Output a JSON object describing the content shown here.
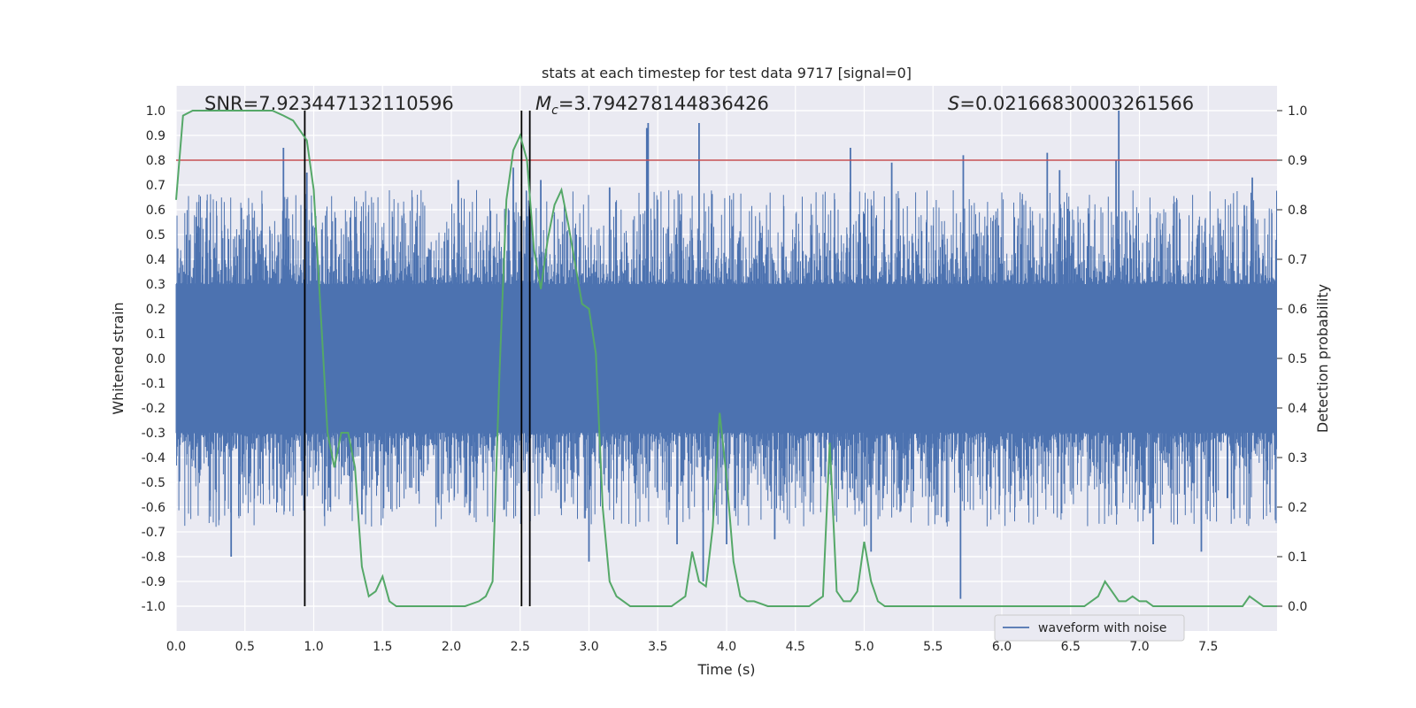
{
  "chart_data": {
    "type": "line",
    "title": "stats at each timestep for test data 9717 [signal=0]",
    "xlabel": "Time (s)",
    "ylabel": "Whitened strain",
    "y2label": "Detection probability",
    "xlim": [
      0.0,
      8.0
    ],
    "ylim": [
      -1.1,
      1.1
    ],
    "y2lim": [
      -0.05,
      1.05
    ],
    "x_ticks": [
      "0.0",
      "0.5",
      "1.0",
      "1.5",
      "2.0",
      "2.5",
      "3.0",
      "3.5",
      "4.0",
      "4.5",
      "5.0",
      "5.5",
      "6.0",
      "6.5",
      "7.0",
      "7.5"
    ],
    "y_ticks": [
      "1.0",
      "0.9",
      "0.8",
      "0.7",
      "0.6",
      "0.5",
      "0.4",
      "0.3",
      "0.2",
      "0.1",
      "0.0",
      "-0.1",
      "-0.2",
      "-0.3",
      "-0.4",
      "-0.5",
      "-0.6",
      "-0.7",
      "-0.8",
      "-0.9",
      "-1.0"
    ],
    "y2_ticks": [
      "1.0",
      "0.9",
      "0.8",
      "0.7",
      "0.6",
      "0.5",
      "0.4",
      "0.3",
      "0.2",
      "0.1",
      "0.0"
    ],
    "annotations": {
      "snr": "SNR=7.923447132110596",
      "mc_symbol": "M",
      "mc_sub": "c",
      "mc_value": "=3.794278144836426",
      "s_symbol": "S",
      "s_value": "=0.02166830003261566"
    },
    "legend": {
      "label": "waveform with noise",
      "position": "lower-right"
    },
    "threshold": {
      "y2": 0.9,
      "color": "#c44e52"
    },
    "vertical_lines_x": [
      0.935,
      2.51,
      2.57
    ],
    "waveform": {
      "name": "waveform with noise",
      "color": "#4c72b0",
      "sample_count": 2400,
      "core_amplitude": 0.3,
      "spikes": [
        {
          "x": 0.4,
          "y": -0.8
        },
        {
          "x": 0.78,
          "y": 0.85
        },
        {
          "x": 0.95,
          "y": 0.75
        },
        {
          "x": 1.12,
          "y": -0.6
        },
        {
          "x": 1.35,
          "y": -0.63
        },
        {
          "x": 2.05,
          "y": 0.72
        },
        {
          "x": 2.45,
          "y": 0.77
        },
        {
          "x": 2.65,
          "y": 0.72
        },
        {
          "x": 3.0,
          "y": -0.82
        },
        {
          "x": 3.15,
          "y": 0.69
        },
        {
          "x": 3.42,
          "y": 0.93
        },
        {
          "x": 3.43,
          "y": 0.95
        },
        {
          "x": 3.64,
          "y": -0.75
        },
        {
          "x": 3.8,
          "y": 0.95
        },
        {
          "x": 3.83,
          "y": -0.9
        },
        {
          "x": 4.0,
          "y": -0.75
        },
        {
          "x": 4.35,
          "y": -0.73
        },
        {
          "x": 4.9,
          "y": 0.85
        },
        {
          "x": 5.05,
          "y": -0.78
        },
        {
          "x": 5.2,
          "y": 0.79
        },
        {
          "x": 5.7,
          "y": -0.97
        },
        {
          "x": 5.72,
          "y": 0.82
        },
        {
          "x": 6.33,
          "y": 0.83
        },
        {
          "x": 6.42,
          "y": 0.76
        },
        {
          "x": 6.83,
          "y": 0.8
        },
        {
          "x": 6.85,
          "y": 1.0
        },
        {
          "x": 7.1,
          "y": -0.75
        },
        {
          "x": 7.45,
          "y": -0.78
        },
        {
          "x": 7.82,
          "y": 0.73
        }
      ]
    },
    "detection_probability": {
      "color": "#55a868",
      "x": [
        0.0,
        0.05,
        0.12,
        0.25,
        0.4,
        0.55,
        0.7,
        0.78,
        0.85,
        0.95,
        1.0,
        1.1,
        1.15,
        1.2,
        1.25,
        1.3,
        1.35,
        1.4,
        1.45,
        1.5,
        1.55,
        1.6,
        1.65,
        1.7,
        1.8,
        1.9,
        2.0,
        2.1,
        2.2,
        2.25,
        2.3,
        2.35,
        2.4,
        2.45,
        2.5,
        2.55,
        2.6,
        2.65,
        2.7,
        2.75,
        2.8,
        2.85,
        2.95,
        3.0,
        3.05,
        3.1,
        3.15,
        3.2,
        3.25,
        3.3,
        3.4,
        3.5,
        3.6,
        3.65,
        3.7,
        3.75,
        3.8,
        3.85,
        3.9,
        3.95,
        4.0,
        4.05,
        4.1,
        4.15,
        4.2,
        4.3,
        4.4,
        4.5,
        4.6,
        4.7,
        4.75,
        4.8,
        4.85,
        4.9,
        4.95,
        5.0,
        5.05,
        5.1,
        5.15,
        5.2,
        5.3,
        5.4,
        5.5,
        5.6,
        5.7,
        5.8,
        5.9,
        6.0,
        6.1,
        6.2,
        6.3,
        6.4,
        6.5,
        6.6,
        6.7,
        6.75,
        6.8,
        6.85,
        6.9,
        6.95,
        7.0,
        7.05,
        7.1,
        7.2,
        7.3,
        7.4,
        7.5,
        7.6,
        7.7,
        7.75,
        7.8,
        7.85,
        7.9,
        8.0
      ],
      "y": [
        0.82,
        0.99,
        1.0,
        1.0,
        1.0,
        1.0,
        1.0,
        0.99,
        0.98,
        0.94,
        0.84,
        0.35,
        0.28,
        0.35,
        0.35,
        0.28,
        0.08,
        0.02,
        0.03,
        0.06,
        0.01,
        0.0,
        0.0,
        0.0,
        0.0,
        0.0,
        0.0,
        0.0,
        0.01,
        0.02,
        0.05,
        0.47,
        0.82,
        0.92,
        0.95,
        0.9,
        0.72,
        0.64,
        0.74,
        0.81,
        0.84,
        0.77,
        0.61,
        0.6,
        0.51,
        0.2,
        0.05,
        0.02,
        0.01,
        0.0,
        0.0,
        0.0,
        0.0,
        0.01,
        0.02,
        0.11,
        0.05,
        0.04,
        0.16,
        0.39,
        0.26,
        0.09,
        0.02,
        0.01,
        0.01,
        0.0,
        0.0,
        0.0,
        0.0,
        0.02,
        0.33,
        0.03,
        0.01,
        0.01,
        0.03,
        0.13,
        0.05,
        0.01,
        0.0,
        0.0,
        0.0,
        0.0,
        0.0,
        0.0,
        0.0,
        0.0,
        0.0,
        0.0,
        0.0,
        0.0,
        0.0,
        0.0,
        0.0,
        0.0,
        0.02,
        0.05,
        0.03,
        0.01,
        0.01,
        0.02,
        0.01,
        0.01,
        0.0,
        0.0,
        0.0,
        0.0,
        0.0,
        0.0,
        0.0,
        0.0,
        0.02,
        0.01,
        0.0,
        0.0
      ]
    }
  }
}
